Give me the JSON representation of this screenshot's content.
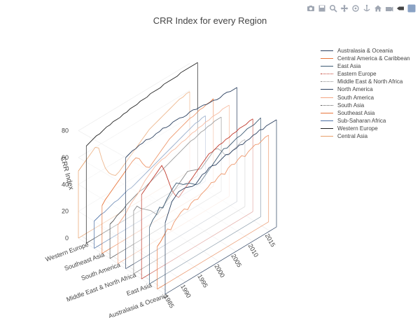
{
  "title": "CRR Index for every Region",
  "modebar": {
    "icons": [
      "camera-icon",
      "save-icon",
      "zoom-icon",
      "pan-icon",
      "orbit-icon",
      "turntable-icon",
      "home-icon",
      "camera-reset-icon",
      "hover-icon",
      "plotly-logo-icon"
    ]
  },
  "chart_data": {
    "type": "line",
    "variant": "3d-ribbon-lines",
    "title": "CRR Index for every Region",
    "xlabel": "",
    "ylabel": "",
    "zlabel": "CRR Index",
    "x_ticks": [
      "1985",
      "1990",
      "1995",
      "2000",
      "2005",
      "2010",
      "2015"
    ],
    "z_ticks": [
      "0",
      "20",
      "40",
      "60",
      "80"
    ],
    "y_tick_labels": [
      "Australasia & Oceania",
      "East Asia",
      "Middle East & North Africa",
      "South America",
      "Southeast Asia",
      "Western Europe"
    ],
    "xlim": [
      1984,
      2017
    ],
    "zlim": [
      0,
      90
    ],
    "x": [
      1984,
      1985,
      1986,
      1987,
      1988,
      1989,
      1990,
      1991,
      1992,
      1993,
      1994,
      1995,
      1996,
      1997,
      1998,
      1999,
      2000,
      2001,
      2002,
      2003,
      2004,
      2005,
      2006,
      2007,
      2008,
      2009,
      2010,
      2011,
      2012,
      2013,
      2014,
      2015,
      2016,
      2017
    ],
    "legend_position": "right",
    "series": [
      {
        "name": "Australasia & Oceania",
        "color": "#2a3f5f",
        "values": [
          50,
          56,
          62,
          64,
          66,
          66,
          66,
          65,
          64,
          64,
          66,
          68,
          68,
          70,
          70,
          69,
          70,
          71,
          72,
          71,
          72,
          72,
          73,
          72,
          73,
          73,
          74,
          74,
          75,
          74,
          75,
          75,
          75,
          75
        ]
      },
      {
        "name": "Central America & Caribbean",
        "color": "#e8763c",
        "values": [
          30,
          32,
          35,
          38,
          36,
          40,
          42,
          44,
          45,
          43,
          46,
          47,
          46,
          48,
          49,
          50,
          52,
          51,
          53,
          54,
          52,
          55,
          56,
          55,
          57,
          58,
          56,
          58,
          59,
          60,
          59,
          60,
          61,
          61
        ]
      },
      {
        "name": "East Asia",
        "color": "#3d5a73",
        "values": [
          40,
          44,
          46,
          50,
          48,
          52,
          55,
          58,
          60,
          58,
          56,
          55,
          54,
          52,
          50,
          50,
          52,
          54,
          56,
          58,
          60,
          62,
          64,
          63,
          64,
          65,
          66,
          66,
          67,
          68,
          68,
          68,
          69,
          70
        ]
      },
      {
        "name": "Eastern Europe",
        "color": "#c0392b",
        "values": [
          60,
          62,
          64,
          66,
          68,
          70,
          72,
          66,
          58,
          50,
          45,
          42,
          44,
          46,
          48,
          50,
          52,
          54,
          56,
          58,
          60,
          60,
          61,
          62,
          62,
          63,
          63,
          64,
          64,
          65,
          65,
          65,
          66,
          66
        ]
      },
      {
        "name": "Middle East & North Africa",
        "color": "#888888",
        "values": [
          45,
          47,
          44,
          42,
          40,
          38,
          35,
          32,
          34,
          36,
          38,
          40,
          42,
          44,
          46,
          48,
          50,
          49,
          48,
          47,
          46,
          48,
          50,
          52,
          54,
          53,
          50,
          46,
          44,
          45,
          46,
          47,
          48,
          48
        ]
      },
      {
        "name": "North America",
        "color": "#2a3f5f",
        "values": [
          80,
          81,
          82,
          82,
          83,
          83,
          84,
          83,
          83,
          84,
          84,
          85,
          84,
          84,
          85,
          85,
          85,
          84,
          84,
          85,
          85,
          84,
          84,
          84,
          83,
          83,
          83,
          82,
          82,
          83,
          83,
          82,
          82,
          82
        ]
      },
      {
        "name": "South America",
        "color": "#f4a582",
        "values": [
          28,
          30,
          32,
          35,
          38,
          40,
          42,
          45,
          48,
          50,
          52,
          54,
          55,
          56,
          56,
          57,
          58,
          58,
          59,
          60,
          60,
          61,
          62,
          62,
          63,
          63,
          64,
          64,
          65,
          65,
          65,
          66,
          66,
          66
        ]
      },
      {
        "name": "South Asia",
        "color": "#555555",
        "values": [
          25,
          26,
          28,
          29,
          30,
          32,
          33,
          34,
          35,
          36,
          36,
          37,
          38,
          39,
          40,
          41,
          42,
          43,
          44,
          45,
          46,
          47,
          48,
          49,
          50,
          50,
          51,
          52,
          52,
          53,
          53,
          54,
          54,
          54
        ]
      },
      {
        "name": "Southeast Asia",
        "color": "#e8763c",
        "values": [
          35,
          38,
          40,
          42,
          44,
          46,
          48,
          50,
          52,
          54,
          55,
          53,
          48,
          44,
          42,
          44,
          46,
          48,
          50,
          52,
          54,
          55,
          56,
          57,
          58,
          59,
          60,
          60,
          61,
          62,
          62,
          63,
          63,
          64
        ]
      },
      {
        "name": "Sub-Saharan Africa",
        "color": "#4a6fa5",
        "values": [
          20,
          21,
          22,
          22,
          23,
          24,
          25,
          25,
          26,
          27,
          28,
          28,
          29,
          30,
          31,
          32,
          33,
          34,
          35,
          36,
          37,
          38,
          39,
          40,
          41,
          42,
          43,
          44,
          45,
          46,
          47,
          47,
          48,
          48
        ]
      },
      {
        "name": "Western Europe",
        "color": "#222222",
        "values": [
          72,
          73,
          74,
          75,
          75,
          76,
          77,
          77,
          78,
          78,
          78,
          79,
          79,
          80,
          80,
          80,
          81,
          81,
          81,
          82,
          82,
          82,
          82,
          83,
          83,
          83,
          83,
          83,
          84,
          84,
          84,
          84,
          84,
          84
        ]
      },
      {
        "name": "Central Asia",
        "color": "#e8a06a",
        "values": [
          50,
          52,
          54,
          56,
          58,
          60,
          58,
          48,
          40,
          35,
          32,
          30,
          31,
          33,
          35,
          37,
          39,
          41,
          43,
          45,
          47,
          49,
          50,
          51,
          52,
          53,
          54,
          55,
          56,
          57,
          58,
          58,
          59,
          59
        ]
      }
    ]
  }
}
